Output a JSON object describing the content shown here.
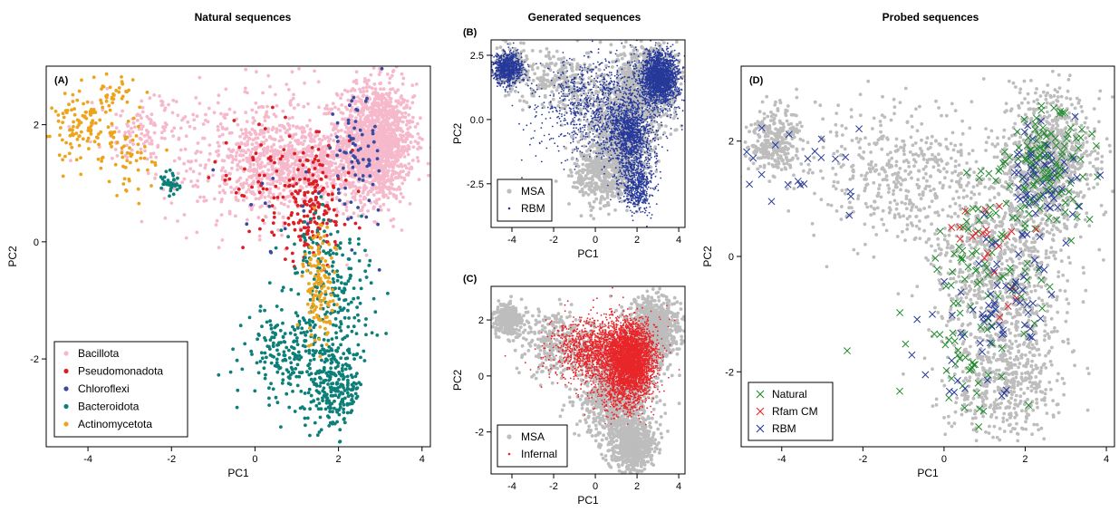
{
  "colors": {
    "Bacillota": "#f6b9cc",
    "Pseudomonadota": "#dc1e24",
    "Chloroflexi": "#3a4aa1",
    "Bacteroidota": "#0c7f78",
    "Actinomycetota": "#eda41d",
    "MSA": "#bdbdbd",
    "RBM": "#26399a",
    "Infernal": "#e8262a",
    "Natural": "#1e8a2a",
    "Rfam CM": "#e0262a"
  },
  "chart_data": [
    {
      "id": "A",
      "type": "scatter",
      "title": "Natural sequences",
      "panel_label": "(A)",
      "xlabel": "PC1",
      "ylabel": "PC2",
      "xlim": [
        -5,
        4.2
      ],
      "ylim": [
        -3.5,
        3.0
      ],
      "xticks": [
        -4,
        -2,
        0,
        2,
        4
      ],
      "yticks": [
        -2,
        0,
        2
      ],
      "legend_position": "bottom-left",
      "series": [
        {
          "name": "Bacillota",
          "marker": "dot",
          "n": 2600,
          "clusters": [
            [
              2.9,
              1.7,
              0.45,
              0.5,
              0.55
            ],
            [
              1.2,
              1.35,
              0.8,
              0.35,
              0.25
            ],
            [
              -0.3,
              1.3,
              0.9,
              0.55,
              0.12
            ],
            [
              -2.6,
              1.9,
              0.6,
              0.3,
              0.05
            ],
            [
              0.5,
              2.1,
              0.9,
              0.4,
              0.03
            ]
          ]
        },
        {
          "name": "Pseudomonadota",
          "marker": "dot",
          "n": 230,
          "clusters": [
            [
              1.4,
              0.6,
              0.45,
              0.5,
              0.75
            ],
            [
              0.2,
              1.1,
              0.6,
              0.45,
              0.25
            ]
          ]
        },
        {
          "name": "Chloroflexi",
          "marker": "dot",
          "n": 90,
          "clusters": [
            [
              2.4,
              1.4,
              0.35,
              0.55,
              0.85
            ],
            [
              0.5,
              0.4,
              0.5,
              0.5,
              0.15
            ]
          ]
        },
        {
          "name": "Bacteroidota",
          "marker": "dot",
          "n": 700,
          "clusters": [
            [
              1.9,
              -2.5,
              0.35,
              0.35,
              0.35
            ],
            [
              0.8,
              -1.9,
              0.5,
              0.4,
              0.3
            ],
            [
              2.0,
              -1.0,
              0.45,
              0.5,
              0.2
            ],
            [
              1.6,
              -0.2,
              0.45,
              0.4,
              0.1
            ],
            [
              -2.0,
              1.0,
              0.12,
              0.12,
              0.05
            ]
          ]
        },
        {
          "name": "Actinomycetota",
          "marker": "dot",
          "n": 330,
          "clusters": [
            [
              -4.1,
              1.95,
              0.35,
              0.3,
              0.35
            ],
            [
              1.55,
              -0.8,
              0.2,
              0.5,
              0.4
            ],
            [
              -3.0,
              1.4,
              0.3,
              0.3,
              0.15
            ],
            [
              -3.4,
              2.5,
              0.25,
              0.15,
              0.1
            ]
          ]
        }
      ]
    },
    {
      "id": "B",
      "type": "scatter",
      "title": "Generated sequences",
      "panel_label": "(B)",
      "xlabel": "PC1",
      "ylabel": "PC2",
      "xlim": [
        -5,
        4.3
      ],
      "ylim": [
        -4.2,
        3.1
      ],
      "xticks": [
        -4,
        -2,
        0,
        2,
        4
      ],
      "yticks": [
        -2.5,
        0.0,
        2.5
      ],
      "ytick_labels": [
        "-2.5",
        "0.0",
        "2.5"
      ],
      "legend_position": "bottom-left",
      "series": [
        {
          "name": "MSA",
          "marker": "dot",
          "n": 2800,
          "clusters": [
            [
              2.5,
              1.5,
              0.7,
              0.7,
              0.35
            ],
            [
              1.2,
              -0.5,
              0.8,
              0.9,
              0.3
            ],
            [
              0.5,
              -2.2,
              0.8,
              0.6,
              0.15
            ],
            [
              -1.5,
              1.5,
              1.0,
              0.6,
              0.1
            ],
            [
              -4.0,
              2.0,
              0.35,
              0.35,
              0.1
            ]
          ]
        },
        {
          "name": "RBM",
          "marker": "dot",
          "n": 5200,
          "clusters": [
            [
              3.1,
              1.6,
              0.45,
              0.5,
              0.35
            ],
            [
              -4.2,
              2.0,
              0.35,
              0.3,
              0.15
            ],
            [
              1.7,
              -0.6,
              0.5,
              0.7,
              0.2
            ],
            [
              2.0,
              -2.6,
              0.4,
              0.5,
              0.1
            ],
            [
              0.3,
              0.5,
              1.5,
              1.0,
              0.2
            ]
          ]
        }
      ]
    },
    {
      "id": "C",
      "type": "scatter",
      "panel_label": "(C)",
      "xlabel": "PC1",
      "ylabel": "PC2",
      "xlim": [
        -5,
        4.3
      ],
      "ylim": [
        -3.5,
        3.2
      ],
      "xticks": [
        -4,
        -2,
        0,
        2,
        4
      ],
      "yticks": [
        -2,
        0,
        2
      ],
      "legend_position": "bottom-left",
      "series": [
        {
          "name": "MSA",
          "marker": "dot",
          "n": 3000,
          "clusters": [
            [
              2.8,
              1.6,
              0.6,
              0.6,
              0.3
            ],
            [
              1.0,
              -0.7,
              0.9,
              0.9,
              0.3
            ],
            [
              1.8,
              -2.5,
              0.5,
              0.45,
              0.2
            ],
            [
              -4.2,
              2.0,
              0.35,
              0.3,
              0.1
            ],
            [
              -1.8,
              1.2,
              0.9,
              0.6,
              0.1
            ]
          ]
        },
        {
          "name": "Infernal",
          "marker": "dot",
          "n": 5200,
          "clusters": [
            [
              1.7,
              0.6,
              0.55,
              0.6,
              0.6
            ],
            [
              0.2,
              0.9,
              1.1,
              0.6,
              0.3
            ],
            [
              1.3,
              -0.5,
              0.6,
              0.5,
              0.1
            ]
          ]
        }
      ]
    },
    {
      "id": "D",
      "type": "scatter",
      "title": "Probed sequences",
      "panel_label": "(D)",
      "xlabel": "PC1",
      "ylabel": "PC2",
      "xlim": [
        -5,
        4.2
      ],
      "ylim": [
        -3.3,
        3.3
      ],
      "xticks": [
        -4,
        -2,
        0,
        2,
        4
      ],
      "yticks": [
        -2,
        0,
        2
      ],
      "legend_position": "bottom-left",
      "series": [
        {
          "name": "",
          "marker": "dot",
          "color_key": "MSA",
          "n": 3000,
          "clusters": [
            [
              2.6,
              1.7,
              0.55,
              0.55,
              0.3
            ],
            [
              1.4,
              -0.2,
              0.8,
              0.9,
              0.3
            ],
            [
              1.5,
              -2.2,
              0.7,
              0.5,
              0.15
            ],
            [
              -4.2,
              2.0,
              0.35,
              0.3,
              0.1
            ],
            [
              -1.0,
              1.4,
              1.1,
              0.6,
              0.15
            ]
          ]
        },
        {
          "name": "Natural",
          "marker": "x",
          "n": 230,
          "clusters": [
            [
              2.5,
              1.6,
              0.6,
              0.45,
              0.5
            ],
            [
              1.0,
              0.0,
              0.8,
              0.9,
              0.35
            ],
            [
              0.5,
              -2.0,
              0.7,
              0.5,
              0.15
            ]
          ]
        },
        {
          "name": "Rfam CM",
          "marker": "x",
          "n": 22,
          "clusters": [
            [
              1.1,
              0.4,
              0.45,
              0.35,
              0.8
            ],
            [
              1.5,
              -0.9,
              0.2,
              0.2,
              0.2
            ]
          ]
        },
        {
          "name": "RBM",
          "marker": "x",
          "n": 150,
          "clusters": [
            [
              2.5,
              1.4,
              0.6,
              0.6,
              0.4
            ],
            [
              1.7,
              -0.8,
              0.45,
              0.6,
              0.25
            ],
            [
              -3.5,
              1.6,
              0.9,
              0.6,
              0.15
            ],
            [
              0.5,
              -1.3,
              0.8,
              0.9,
              0.2
            ]
          ]
        }
      ]
    }
  ]
}
